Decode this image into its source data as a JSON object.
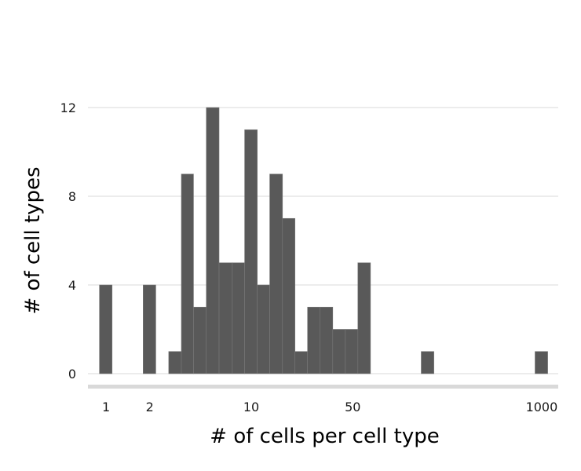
{
  "chart_data": {
    "type": "bar",
    "xlabel": "# of cells per cell type",
    "ylabel": "# of cell types",
    "x_scale": "log",
    "xlim": [
      0.75,
      1300
    ],
    "ylim": [
      0,
      12
    ],
    "x_ticks": [
      1,
      2,
      10,
      50,
      1000
    ],
    "x_tick_labels": [
      "1",
      "2",
      "10",
      "50",
      "1000"
    ],
    "y_ticks": [
      0,
      4,
      8,
      12
    ],
    "y_tick_labels": [
      "0",
      "4",
      "8",
      "12"
    ],
    "grid": "horizontal",
    "bins": [
      {
        "start": 0.9,
        "end": 1.1,
        "count": 4
      },
      {
        "start": 1.8,
        "end": 2.2,
        "count": 4
      },
      {
        "start": 2.7,
        "end": 3.3,
        "count": 1
      },
      {
        "start": 3.3,
        "end": 4.0,
        "count": 9
      },
      {
        "start": 4.0,
        "end": 4.9,
        "count": 3
      },
      {
        "start": 4.9,
        "end": 6.0,
        "count": 12
      },
      {
        "start": 6.0,
        "end": 7.4,
        "count": 5
      },
      {
        "start": 7.4,
        "end": 9.0,
        "count": 5
      },
      {
        "start": 9.0,
        "end": 11.0,
        "count": 11
      },
      {
        "start": 11.0,
        "end": 13.4,
        "count": 4
      },
      {
        "start": 13.4,
        "end": 16.4,
        "count": 9
      },
      {
        "start": 16.4,
        "end": 20.0,
        "count": 7
      },
      {
        "start": 20.0,
        "end": 24.4,
        "count": 1
      },
      {
        "start": 24.4,
        "end": 29.8,
        "count": 3
      },
      {
        "start": 29.8,
        "end": 36.4,
        "count": 3
      },
      {
        "start": 36.4,
        "end": 44.4,
        "count": 2
      },
      {
        "start": 44.4,
        "end": 54.2,
        "count": 2
      },
      {
        "start": 54.2,
        "end": 66.2,
        "count": 5
      },
      {
        "start": 148,
        "end": 181,
        "count": 1
      },
      {
        "start": 900,
        "end": 1100,
        "count": 1
      }
    ]
  },
  "colors": {
    "bar": "#595959",
    "bar_edge": "#7a7a7a",
    "grid": "#d9d9d9",
    "axis_line": "#d9d9d9"
  }
}
